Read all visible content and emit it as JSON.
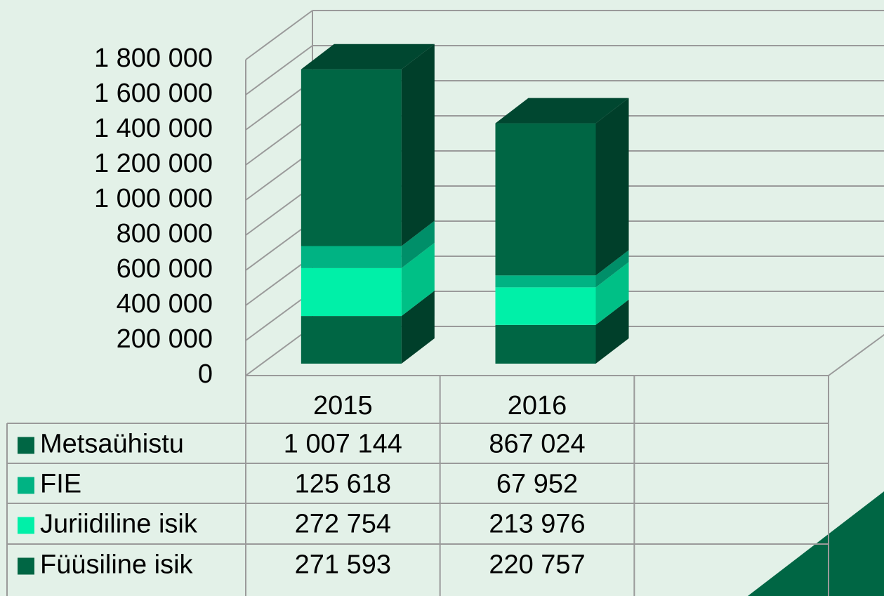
{
  "chart_data": {
    "type": "bar3d_stacked",
    "categories": [
      "2015",
      "2016"
    ],
    "series": [
      {
        "name": "Füüsiline isik",
        "color": "#006644",
        "values": [
          271593,
          220757
        ],
        "value_labels": [
          "271 593",
          "220 757"
        ]
      },
      {
        "name": "Juriidiline isik",
        "color": "#00f0a8",
        "values": [
          272754,
          213976
        ],
        "value_labels": [
          "272 754",
          "213 976"
        ]
      },
      {
        "name": "FIE",
        "color": "#00b383",
        "values": [
          125618,
          67952
        ],
        "value_labels": [
          "125 618",
          "67 952"
        ]
      },
      {
        "name": "Metsaühistu",
        "color": "#006644",
        "values": [
          1007144,
          867024
        ],
        "value_labels": [
          "1 007 144",
          "867 024"
        ]
      }
    ],
    "ylim": [
      0,
      1800000
    ],
    "yticks": [
      0,
      {
        "value": 200000,
        "label": "200 000"
      },
      {
        "value": 400000,
        "label": "400 000"
      },
      {
        "value": 600000,
        "label": "600 000"
      },
      {
        "value": 800000,
        "label": "800 000"
      },
      {
        "value": 1000000,
        "label": "1 000 000"
      },
      {
        "value": 1200000,
        "label": "1 200 000"
      },
      {
        "value": 1400000,
        "label": "1 400 000"
      },
      {
        "value": 1600000,
        "label": "1 600 000"
      },
      {
        "value": 1800000,
        "label": "1 800 000"
      }
    ],
    "grid": true
  }
}
